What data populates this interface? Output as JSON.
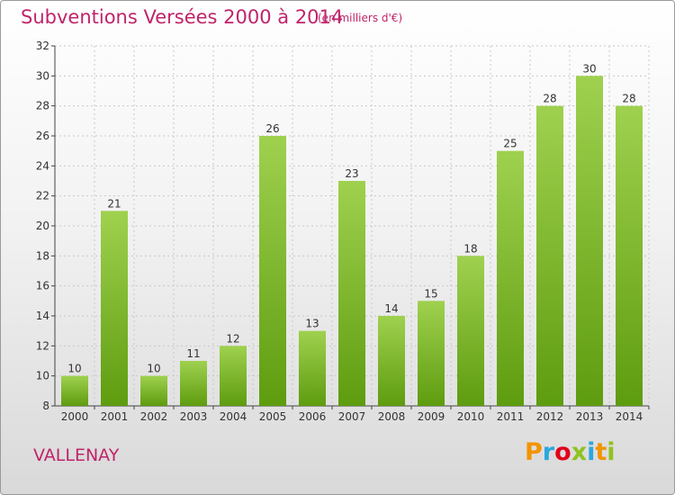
{
  "title": "Subventions Versées 2000 à 2014",
  "subtitle": "(en milliers d'€)",
  "commune": "VALLENAY",
  "logo": {
    "text": "Proxiti",
    "colors": [
      "#f29400",
      "#2aa7de",
      "#e2001a",
      "#8fc31f",
      "#2aa7de",
      "#f29400",
      "#8fc31f"
    ]
  },
  "colors": {
    "bar_top": "#9fd14f",
    "bar_bottom": "#5e9c0f",
    "title": "#c0246a"
  },
  "chart_data": {
    "type": "bar",
    "categories": [
      "2000",
      "2001",
      "2002",
      "2003",
      "2004",
      "2005",
      "2006",
      "2007",
      "2008",
      "2009",
      "2010",
      "2011",
      "2012",
      "2013",
      "2014"
    ],
    "values": [
      10,
      21,
      10,
      11,
      12,
      26,
      13,
      23,
      14,
      15,
      18,
      25,
      28,
      30,
      28
    ],
    "ylim": [
      8,
      32
    ],
    "yticks": [
      8,
      10,
      12,
      14,
      16,
      18,
      20,
      22,
      24,
      26,
      28,
      30,
      32
    ],
    "grid": true,
    "legend": "none"
  }
}
